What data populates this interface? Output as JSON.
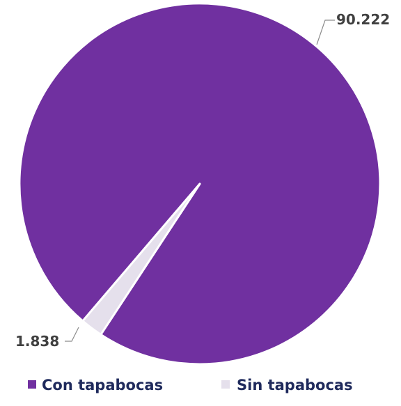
{
  "chart_data": {
    "type": "pie",
    "title": "",
    "series": [
      {
        "name": "",
        "categories": [
          "Con tapabocas",
          "Sin tapabocas"
        ],
        "values": [
          90222,
          1838
        ]
      }
    ],
    "slices": [
      {
        "category": "Con tapabocas",
        "value": 90222,
        "label": "90.222",
        "color": "#7030a0"
      },
      {
        "category": "Sin tapabocas",
        "value": 1838,
        "label": "1.838",
        "color": "#e5e0ec"
      }
    ],
    "legend": {
      "position": "bottom",
      "entries": [
        "Con tapabocas",
        "Sin tapabocas"
      ]
    },
    "data_labels": "outside-with-leader-lines"
  },
  "colors": {
    "slice_border": "#ffffff",
    "label_text": "#404040",
    "legend_text": "#1f2a5c",
    "leader_line": "#8c8c8c"
  }
}
